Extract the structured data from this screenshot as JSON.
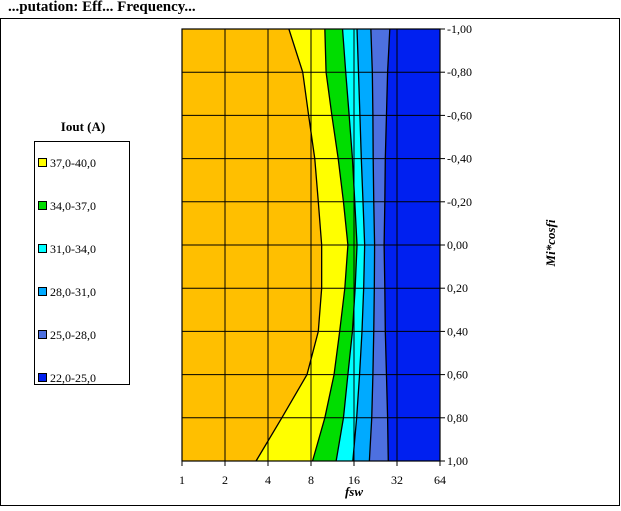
{
  "chart_data": {
    "type": "heatmap",
    "subtype": "filled-contour",
    "title": "...putation: Eff... Frequency...",
    "xlabel": "fsw",
    "ylabel": "Mi*cosfi",
    "legend_title": "Iout (A)",
    "legend_position": "left",
    "grid": true,
    "x_scale": "log2",
    "x_ticks": [
      "1",
      "2",
      "4",
      "8",
      "16",
      "32",
      "64"
    ],
    "xlim": [
      1,
      64
    ],
    "y_ticks": [
      "-1,00",
      "-0,80",
      "-0,60",
      "-0,40",
      "-0,20",
      "0,00",
      "0,20",
      "0,40",
      "0,60",
      "0,80",
      "1,00"
    ],
    "ylim": [
      -1.0,
      1.0
    ],
    "levels": [
      {
        "label": "37,0-40,0",
        "range": [
          37,
          40
        ],
        "color": "#ffff00"
      },
      {
        "label": "34,0-37,0",
        "range": [
          34,
          37
        ],
        "color": "#00dd00"
      },
      {
        "label": "31,0-34,0",
        "range": [
          31,
          34
        ],
        "color": "#00ffff"
      },
      {
        "label": "28,0-31,0",
        "range": [
          28,
          31
        ],
        "color": "#00aaff"
      },
      {
        "label": "25,0-28,0",
        "range": [
          25,
          28
        ],
        "color": "#4d70e0"
      },
      {
        "label": "22,0-25,0",
        "range": [
          22,
          25
        ],
        "color": "#0020f0"
      }
    ],
    "region_above_40_color": "#ffbf00",
    "y_values": [
      -1.0,
      -0.8,
      -0.6,
      -0.4,
      -0.2,
      0.0,
      0.2,
      0.4,
      0.6,
      0.8,
      1.0
    ],
    "boundaries": {
      "note": "fsw value where Iout crosses each level, per y_values",
      "40": [
        5.6,
        7.0,
        7.7,
        8.5,
        9.0,
        9.5,
        9.5,
        9.0,
        7.5,
        5.0,
        3.3
      ],
      "37": [
        10.0,
        10.2,
        11.2,
        12.4,
        13.5,
        14.5,
        13.8,
        12.7,
        11.6,
        10.0,
        8.2
      ],
      "34": [
        13.3,
        14.0,
        14.8,
        15.6,
        16.2,
        16.8,
        16.3,
        15.6,
        14.5,
        13.5,
        12.0
      ],
      "31": [
        16.8,
        17.2,
        17.6,
        18.0,
        18.5,
        19.0,
        18.7,
        18.2,
        17.5,
        16.7,
        15.7
      ],
      "28": [
        21.0,
        21.5,
        21.7,
        21.8,
        22.0,
        22.3,
        22.2,
        22.0,
        21.7,
        21.3,
        20.5
      ],
      "25": [
        28.5,
        27.5,
        27.0,
        26.5,
        26.3,
        26.0,
        26.3,
        26.5,
        27.0,
        27.5,
        27.8
      ]
    }
  }
}
